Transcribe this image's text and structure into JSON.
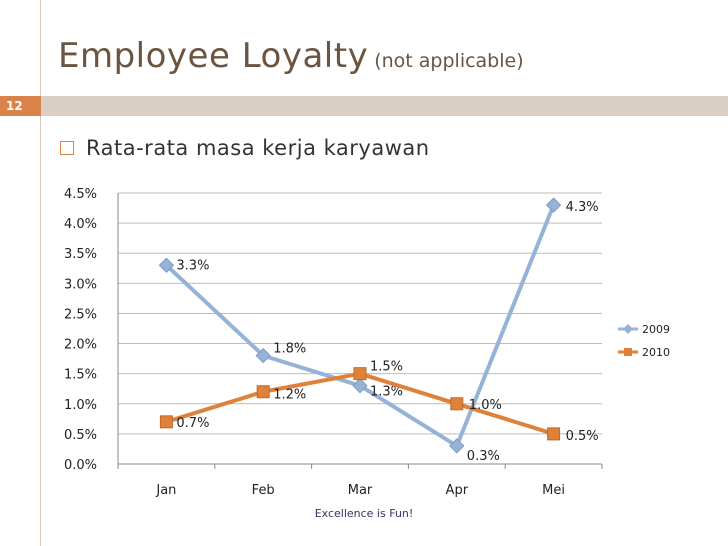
{
  "slide": {
    "title": "Employee Loyalty",
    "subtitle": "(not applicable)",
    "number": "12",
    "bullet": "Rata-rata masa kerja karyawan",
    "footer": "Excellence is Fun!"
  },
  "chart_data": {
    "type": "line",
    "categories": [
      "Jan",
      "Feb",
      "Mar",
      "Apr",
      "Mei"
    ],
    "series": [
      {
        "name": "2009",
        "values": [
          3.3,
          1.8,
          1.3,
          0.3,
          4.3
        ],
        "labels": [
          "3.3%",
          "1.8%",
          "1.3%",
          "0.3%",
          "4.3%"
        ],
        "color": "#95b3d7",
        "marker": "diamond"
      },
      {
        "name": "2010",
        "values": [
          0.7,
          1.2,
          1.5,
          1.0,
          0.5
        ],
        "labels": [
          "0.7%",
          "1.2%",
          "1.5%",
          "1.0%",
          "0.5%"
        ],
        "color": "#e0813a",
        "marker": "square"
      }
    ],
    "yticks": [
      "0.0%",
      "0.5%",
      "1.0%",
      "1.5%",
      "2.0%",
      "2.5%",
      "3.0%",
      "3.5%",
      "4.0%",
      "4.5%"
    ],
    "ylim": [
      0,
      4.5
    ],
    "grid": true,
    "legend": "right"
  }
}
